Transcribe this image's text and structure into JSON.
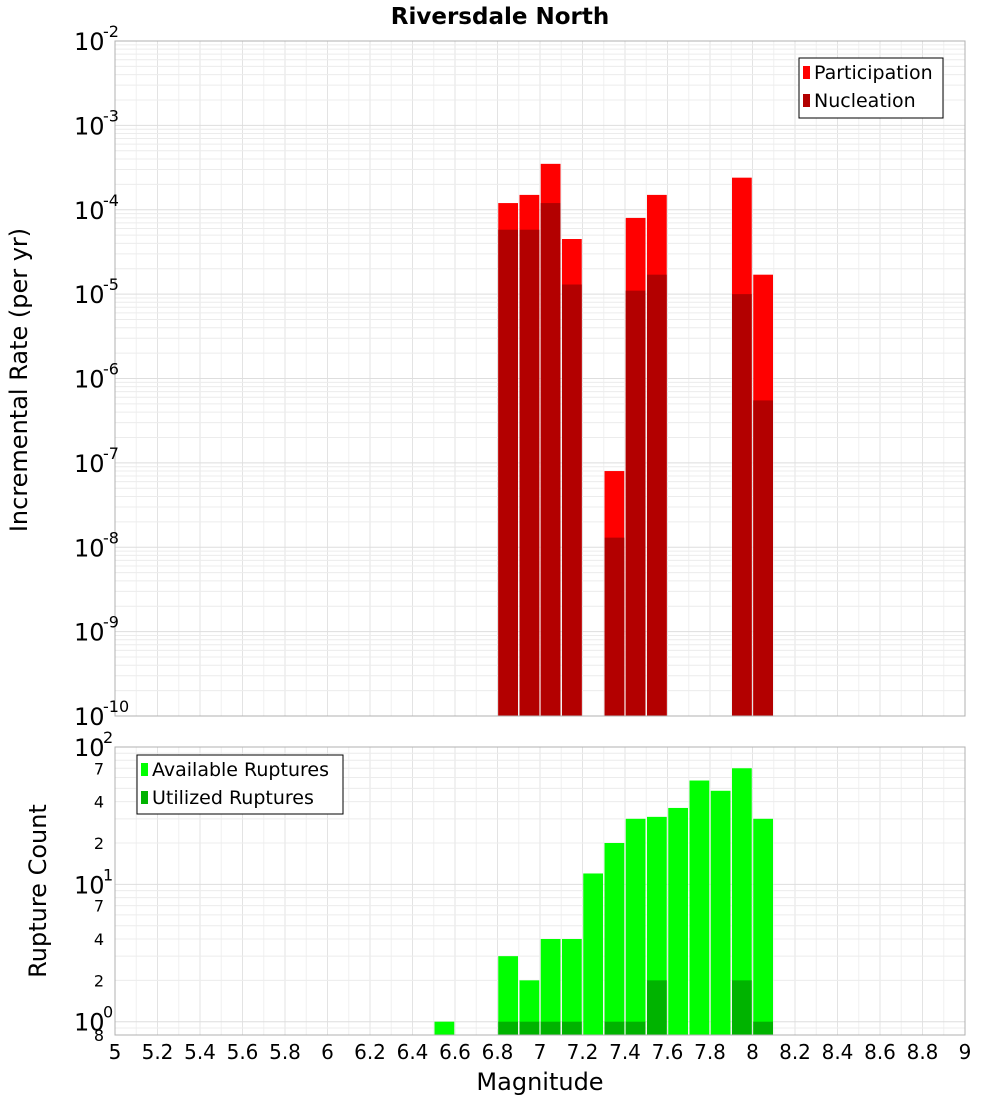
{
  "chart_data": [
    {
      "type": "bar",
      "title": "Riversdale North",
      "xlabel": "",
      "ylabel": "Incremental Rate (per yr)",
      "yscale": "log",
      "ylim": [
        1e-10,
        0.01
      ],
      "xlim": [
        5,
        9
      ],
      "grid": true,
      "legend_position": "top-right",
      "y_ticks": [
        {
          "base": "10",
          "exp": "-2",
          "value": 0.01
        },
        {
          "base": "10",
          "exp": "-3",
          "value": 0.001
        },
        {
          "base": "10",
          "exp": "-4",
          "value": 0.0001
        },
        {
          "base": "10",
          "exp": "-5",
          "value": 1e-05
        },
        {
          "base": "10",
          "exp": "-6",
          "value": 1e-06
        },
        {
          "base": "10",
          "exp": "-7",
          "value": 1e-07
        },
        {
          "base": "10",
          "exp": "-8",
          "value": 1e-08
        },
        {
          "base": "10",
          "exp": "-9",
          "value": 1e-09
        },
        {
          "base": "10",
          "exp": "-10",
          "value": 1e-10
        }
      ],
      "series": [
        {
          "name": "Participation",
          "color": "#ff0000",
          "x": [
            6.85,
            6.95,
            7.05,
            7.15,
            7.35,
            7.45,
            7.55,
            7.95,
            8.05
          ],
          "values": [
            0.00012,
            0.00015,
            0.00035,
            4.5e-05,
            8e-08,
            8e-05,
            0.00015,
            0.00024,
            1.7e-05
          ]
        },
        {
          "name": "Nucleation",
          "color": "#b30000",
          "x": [
            6.85,
            6.95,
            7.05,
            7.15,
            7.35,
            7.45,
            7.55,
            7.95,
            8.05
          ],
          "values": [
            5.8e-05,
            5.8e-05,
            0.00012,
            1.3e-05,
            1.3e-08,
            1.1e-05,
            1.7e-05,
            1e-05,
            5.5e-07
          ]
        }
      ]
    },
    {
      "type": "bar",
      "title": "",
      "xlabel": "Magnitude",
      "ylabel": "Rupture Count",
      "yscale": "log",
      "ylim": [
        0.8,
        100
      ],
      "xlim": [
        5,
        9
      ],
      "grid": true,
      "legend_position": "top-left",
      "x_ticks": [
        "5",
        "5.2",
        "5.4",
        "5.6",
        "5.8",
        "6",
        "6.2",
        "6.4",
        "6.6",
        "6.8",
        "7",
        "7.2",
        "7.4",
        "7.6",
        "7.8",
        "8",
        "8.2",
        "8.4",
        "8.6",
        "8.8",
        "9"
      ],
      "y_major_ticks": [
        {
          "base": "10",
          "exp": "2",
          "value": 100
        },
        {
          "base": "10",
          "exp": "1",
          "value": 10
        },
        {
          "base": "10",
          "exp": "0",
          "value": 1
        }
      ],
      "y_minor_ticks": [
        {
          "label": "7",
          "value": 70
        },
        {
          "label": "4",
          "value": 40
        },
        {
          "label": "2",
          "value": 20
        },
        {
          "label": "7",
          "value": 7
        },
        {
          "label": "4",
          "value": 4
        },
        {
          "label": "2",
          "value": 2
        },
        {
          "label": "8",
          "value": 0.8
        }
      ],
      "series": [
        {
          "name": "Available Ruptures",
          "color": "#00ff00",
          "x": [
            6.55,
            6.85,
            6.95,
            7.05,
            7.15,
            7.25,
            7.35,
            7.45,
            7.55,
            7.65,
            7.75,
            7.85,
            7.95,
            8.05
          ],
          "values": [
            1,
            3,
            2,
            4,
            4,
            12,
            20,
            30,
            31,
            36,
            57,
            48,
            70,
            30
          ]
        },
        {
          "name": "Utilized Ruptures",
          "color": "#00b300",
          "x": [
            6.85,
            6.95,
            7.05,
            7.15,
            7.35,
            7.45,
            7.55,
            7.95,
            8.05
          ],
          "values": [
            1,
            1,
            1,
            1,
            1,
            1,
            2,
            2,
            1
          ]
        }
      ]
    }
  ]
}
